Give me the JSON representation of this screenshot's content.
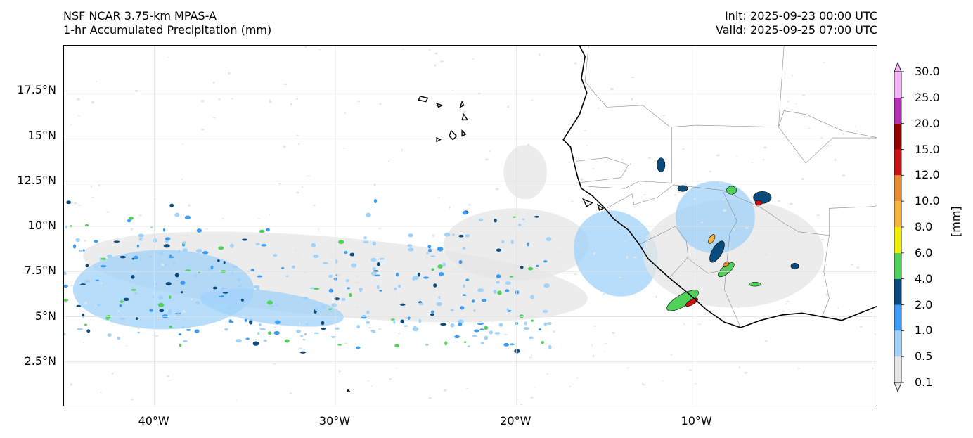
{
  "title": {
    "model": "NSF NCAR 3.75-km MPAS-A",
    "field": "1-hr Accumulated Precipitation (mm)",
    "init": "Init: 2025-09-23 00:00 UTC",
    "valid": "Valid: 2025-09-25 07:00 UTC"
  },
  "map": {
    "extent": {
      "lon_min": -45,
      "lon_max": 0,
      "lat_min": 0,
      "lat_max": 20
    },
    "lat_ticks": [
      {
        "value": 2.5,
        "label": "2.5°N"
      },
      {
        "value": 5,
        "label": "5°N"
      },
      {
        "value": 7.5,
        "label": "7.5°N"
      },
      {
        "value": 10,
        "label": "10°N"
      },
      {
        "value": 12.5,
        "label": "12.5°N"
      },
      {
        "value": 15,
        "label": "15°N"
      },
      {
        "value": 17.5,
        "label": "17.5°N"
      }
    ],
    "lon_ticks": [
      {
        "value": -40,
        "label": "40°W"
      },
      {
        "value": -30,
        "label": "30°W"
      },
      {
        "value": -20,
        "label": "20°W"
      },
      {
        "value": -10,
        "label": "10°W"
      }
    ],
    "gridlines": true,
    "coastline": [
      [
        -16.5,
        20.0
      ],
      [
        -16.2,
        19.4
      ],
      [
        -16.4,
        18.2
      ],
      [
        -16.1,
        17.4
      ],
      [
        -16.5,
        16.2
      ],
      [
        -17.4,
        14.8
      ],
      [
        -17.0,
        14.4
      ],
      [
        -16.8,
        13.5
      ],
      [
        -16.6,
        12.7
      ],
      [
        -16.4,
        12.1
      ],
      [
        -15.8,
        11.7
      ],
      [
        -15.1,
        11.0
      ],
      [
        -14.6,
        10.4
      ],
      [
        -13.8,
        9.8
      ],
      [
        -13.2,
        9.0
      ],
      [
        -12.7,
        8.2
      ],
      [
        -11.6,
        7.2
      ],
      [
        -10.5,
        6.3
      ],
      [
        -9.5,
        5.4
      ],
      [
        -8.5,
        4.7
      ],
      [
        -7.6,
        4.4
      ],
      [
        -6.5,
        4.8
      ],
      [
        -5.3,
        5.1
      ],
      [
        -4.2,
        5.2
      ],
      [
        -3.1,
        5.0
      ],
      [
        -2.0,
        4.8
      ],
      [
        -1.0,
        5.2
      ],
      [
        0.0,
        5.6
      ]
    ],
    "borders": [
      [
        [
          -16.0,
          20.0
        ],
        [
          -16.2,
          18.0
        ],
        [
          -15.0,
          16.6
        ],
        [
          -13.0,
          16.7
        ],
        [
          -11.5,
          15.5
        ],
        [
          -10.0,
          15.6
        ],
        [
          -5.5,
          15.5
        ],
        [
          -5.2,
          20.0
        ]
      ],
      [
        [
          -5.5,
          15.5
        ],
        [
          -5.2,
          16.4
        ],
        [
          -4.0,
          16.2
        ],
        [
          -2.0,
          15.3
        ],
        [
          0.0,
          14.9
        ]
      ],
      [
        [
          -16.7,
          13.6
        ],
        [
          -15.0,
          13.8
        ],
        [
          -13.8,
          13.4
        ],
        [
          -14.2,
          12.7
        ],
        [
          -15.0,
          12.6
        ],
        [
          -16.7,
          12.4
        ]
      ],
      [
        [
          -16.0,
          12.2
        ],
        [
          -14.0,
          12.1
        ],
        [
          -13.2,
          12.5
        ],
        [
          -11.4,
          12.4
        ],
        [
          -11.4,
          15.5
        ]
      ],
      [
        [
          -15.0,
          11.0
        ],
        [
          -13.6,
          11.8
        ],
        [
          -13.5,
          11.2
        ],
        [
          -12.2,
          11.6
        ],
        [
          -11.3,
          12.3
        ]
      ],
      [
        [
          -13.2,
          9.0
        ],
        [
          -11.2,
          10.0
        ],
        [
          -10.6,
          9.2
        ],
        [
          -10.5,
          8.3
        ],
        [
          -11.5,
          7.2
        ]
      ],
      [
        [
          -10.6,
          8.3
        ],
        [
          -9.4,
          7.4
        ],
        [
          -8.4,
          7.6
        ],
        [
          -8.5,
          6.5
        ],
        [
          -7.6,
          4.4
        ]
      ],
      [
        [
          -11.3,
          12.3
        ],
        [
          -8.6,
          12.0
        ],
        [
          -7.8,
          10.3
        ],
        [
          -8.2,
          9.6
        ],
        [
          -8.4,
          7.6
        ]
      ],
      [
        [
          -8.6,
          12.0
        ],
        [
          -6.4,
          11.0
        ],
        [
          -5.4,
          10.3
        ],
        [
          -4.4,
          9.7
        ],
        [
          -2.7,
          9.5
        ],
        [
          -2.7,
          11.0
        ],
        [
          -0.2,
          11.1
        ],
        [
          0.0,
          11.2
        ]
      ],
      [
        [
          -2.7,
          9.5
        ],
        [
          -3.0,
          7.5
        ],
        [
          -2.7,
          6.0
        ],
        [
          -3.1,
          5.0
        ]
      ],
      [
        [
          -5.5,
          15.5
        ],
        [
          -4.0,
          13.5
        ],
        [
          -2.5,
          14.9
        ],
        [
          0.0,
          14.9
        ]
      ]
    ],
    "islands": [
      [
        [
          -25.3,
          17.2
        ],
        [
          -24.9,
          17.1
        ],
        [
          -25.0,
          16.9
        ],
        [
          -25.4,
          17.0
        ]
      ],
      [
        [
          -24.4,
          16.8
        ],
        [
          -24.1,
          16.7
        ],
        [
          -24.3,
          16.6
        ]
      ],
      [
        [
          -23.0,
          16.9
        ],
        [
          -22.9,
          16.7
        ],
        [
          -23.1,
          16.6
        ]
      ],
      [
        [
          -22.9,
          16.2
        ],
        [
          -22.7,
          15.9
        ],
        [
          -23.0,
          15.9
        ]
      ],
      [
        [
          -23.6,
          15.3
        ],
        [
          -23.3,
          15.0
        ],
        [
          -23.5,
          14.8
        ],
        [
          -23.7,
          15.0
        ]
      ],
      [
        [
          -24.4,
          14.9
        ],
        [
          -24.2,
          14.8
        ],
        [
          -24.4,
          14.7
        ]
      ],
      [
        [
          -23.0,
          15.3
        ],
        [
          -22.8,
          15.1
        ],
        [
          -23.0,
          15.0
        ]
      ],
      [
        [
          -16.3,
          11.5
        ],
        [
          -15.8,
          11.3
        ],
        [
          -16.1,
          11.1
        ]
      ],
      [
        [
          -15.5,
          11.2
        ],
        [
          -15.2,
          11.0
        ],
        [
          -15.4,
          10.9
        ]
      ],
      [
        [
          -29.3,
          0.95
        ],
        [
          -29.2,
          0.85
        ],
        [
          -29.35,
          0.85
        ]
      ]
    ],
    "precip_cells": [
      {
        "lon": -10.8,
        "lat": 5.9,
        "rx": 1.8,
        "ry": 0.6,
        "level": 4,
        "angle": -30
      },
      {
        "lon": -10.3,
        "lat": 5.8,
        "rx": 0.7,
        "ry": 0.25,
        "level": 8,
        "angle": -30
      },
      {
        "lon": -8.9,
        "lat": 8.6,
        "rx": 1.2,
        "ry": 0.5,
        "level": 3,
        "angle": -60
      },
      {
        "lon": -9.2,
        "lat": 9.3,
        "rx": 0.5,
        "ry": 0.25,
        "level": 6,
        "angle": -60
      },
      {
        "lon": -8.4,
        "lat": 7.6,
        "rx": 1.0,
        "ry": 0.4,
        "level": 4,
        "angle": -40
      },
      {
        "lon": -8.4,
        "lat": 7.9,
        "rx": 0.35,
        "ry": 0.2,
        "level": 7,
        "angle": -40
      },
      {
        "lon": -6.4,
        "lat": 11.6,
        "rx": 0.9,
        "ry": 0.6,
        "level": 3,
        "angle": 0
      },
      {
        "lon": -6.6,
        "lat": 11.3,
        "rx": 0.35,
        "ry": 0.25,
        "level": 8,
        "angle": 0
      },
      {
        "lon": -8.1,
        "lat": 12.0,
        "rx": 0.5,
        "ry": 0.4,
        "level": 4,
        "angle": 0
      },
      {
        "lon": -10.8,
        "lat": 12.1,
        "rx": 0.5,
        "ry": 0.3,
        "level": 3,
        "angle": 0
      },
      {
        "lon": -12.0,
        "lat": 13.4,
        "rx": 0.4,
        "ry": 0.7,
        "level": 3,
        "angle": 0
      },
      {
        "lon": -4.6,
        "lat": 7.8,
        "rx": 0.4,
        "ry": 0.3,
        "level": 3,
        "angle": 0
      },
      {
        "lon": -6.8,
        "lat": 6.8,
        "rx": 0.6,
        "ry": 0.2,
        "level": 4,
        "angle": 0
      }
    ],
    "precip_field": [
      {
        "lon": -30.0,
        "lat": 7.2,
        "rx": 14.0,
        "ry": 2.2,
        "level": 0,
        "angle": 5
      },
      {
        "lon": -20.0,
        "lat": 9.0,
        "rx": 4.0,
        "ry": 2.0,
        "level": 0,
        "angle": 0
      },
      {
        "lon": -14.5,
        "lat": 8.5,
        "rx": 2.2,
        "ry": 2.5,
        "level": 1,
        "angle": -40
      },
      {
        "lon": -8.0,
        "lat": 8.5,
        "rx": 5.0,
        "ry": 3.0,
        "level": 0,
        "angle": 0
      },
      {
        "lon": -39.5,
        "lat": 6.5,
        "rx": 5.0,
        "ry": 2.2,
        "level": 1,
        "angle": 0
      },
      {
        "lon": -33.5,
        "lat": 5.5,
        "rx": 4.0,
        "ry": 0.9,
        "level": 1,
        "angle": 8
      },
      {
        "lon": -19.5,
        "lat": 13.0,
        "rx": 1.2,
        "ry": 1.5,
        "level": 0,
        "angle": 0
      },
      {
        "lon": -9.0,
        "lat": 10.5,
        "rx": 2.2,
        "ry": 2.0,
        "level": 1,
        "angle": 0
      }
    ]
  },
  "colorbar": {
    "unit": "[mm]",
    "levels": [
      "0.1",
      "0.5",
      "1.0",
      "2.0",
      "4.0",
      "6.0",
      "8.0",
      "10.0",
      "12.0",
      "15.0",
      "20.0",
      "25.0",
      "30.0"
    ],
    "colors": [
      "#e6e6e6",
      "#a0d2fa",
      "#3c9bf5",
      "#0a4b7d",
      "#50d25a",
      "#f0f000",
      "#f5b43c",
      "#e68c32",
      "#c81414",
      "#960000",
      "#b42db4",
      "#f5b4f5"
    ],
    "extend": "both"
  }
}
